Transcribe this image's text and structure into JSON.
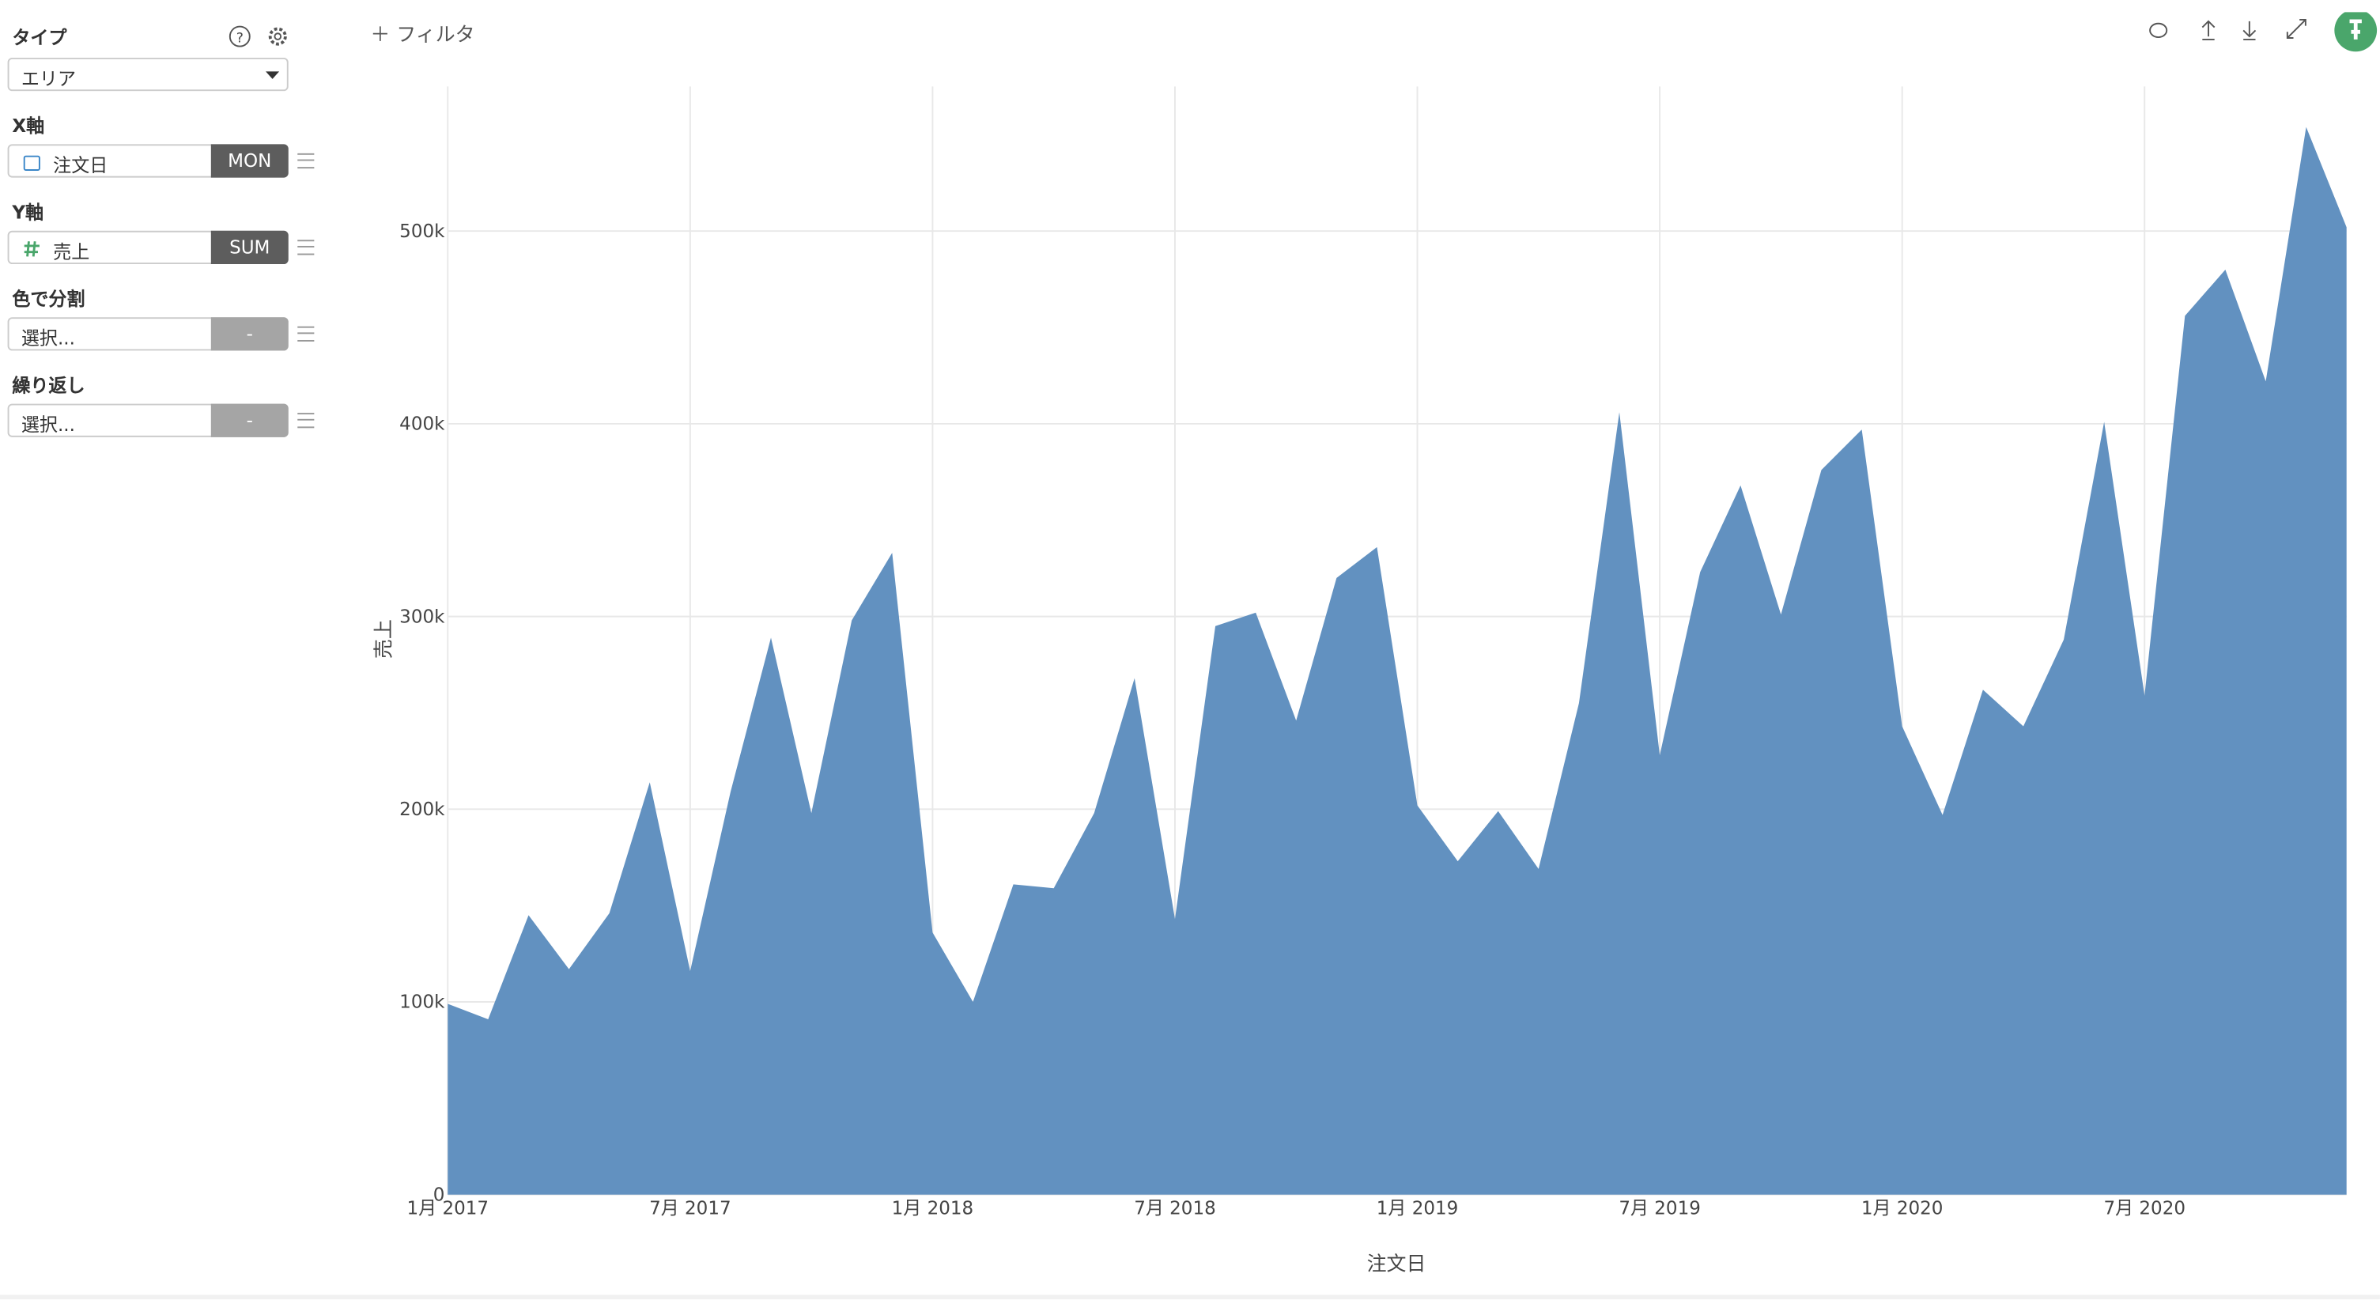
{
  "sidebar": {
    "type_label": "タイプ",
    "type_value": "エリア",
    "fields": [
      {
        "label": "X軸",
        "value": "注文日",
        "agg": "MON"
      },
      {
        "label": "Y軸",
        "value": "売上",
        "agg": "SUM"
      },
      {
        "label": "色で分割",
        "value": "選択...",
        "agg": "-"
      },
      {
        "label": "繰り返し",
        "value": "選択...",
        "agg": "-"
      }
    ]
  },
  "toolbar": {
    "filter": "フィルタ"
  },
  "chart_data": {
    "type": "area",
    "x_label": "注文日",
    "y_label": "売上",
    "color": "#6291c0",
    "grid": true,
    "x": [
      "2017-01",
      "2017-02",
      "2017-03",
      "2017-04",
      "2017-05",
      "2017-06",
      "2017-07",
      "2017-08",
      "2017-09",
      "2017-10",
      "2017-11",
      "2017-12",
      "2018-01",
      "2018-02",
      "2018-03",
      "2018-04",
      "2018-05",
      "2018-06",
      "2018-07",
      "2018-08",
      "2018-09",
      "2018-10",
      "2018-11",
      "2018-12",
      "2019-01",
      "2019-02",
      "2019-03",
      "2019-04",
      "2019-05",
      "2019-06",
      "2019-07",
      "2019-08",
      "2019-09",
      "2019-10",
      "2019-11",
      "2019-12",
      "2020-01",
      "2020-02",
      "2020-03",
      "2020-04",
      "2020-05",
      "2020-06",
      "2020-07",
      "2020-08",
      "2020-09",
      "2020-10",
      "2020-11",
      "2020-12"
    ],
    "values": [
      99000,
      91000,
      145000,
      117000,
      146000,
      214000,
      116000,
      209000,
      289000,
      198000,
      298000,
      333000,
      136000,
      100000,
      161000,
      159000,
      198000,
      268000,
      143000,
      295000,
      302000,
      246000,
      320000,
      336000,
      202000,
      173000,
      199000,
      169000,
      255000,
      406000,
      228000,
      323000,
      368000,
      301000,
      376000,
      397000,
      243000,
      197000,
      262000,
      243000,
      288000,
      401000,
      259000,
      456000,
      480000,
      422000,
      554000,
      502000
    ],
    "xlim": [
      "2017-01",
      "2020-12"
    ],
    "xticks": [
      {
        "value": "2017-01",
        "label": "1月 2017"
      },
      {
        "value": "2017-07",
        "label": "7月 2017"
      },
      {
        "value": "2018-01",
        "label": "1月 2018"
      },
      {
        "value": "2018-07",
        "label": "7月 2018"
      },
      {
        "value": "2019-01",
        "label": "1月 2019"
      },
      {
        "value": "2019-07",
        "label": "7月 2019"
      },
      {
        "value": "2020-01",
        "label": "1月 2020"
      },
      {
        "value": "2020-07",
        "label": "7月 2020"
      }
    ],
    "ylim": [
      0,
      575000
    ],
    "yticks": [
      0,
      {
        "value": 100000,
        "label": "100k"
      },
      {
        "value": 200000,
        "label": "200k"
      },
      {
        "value": 300000,
        "label": "300k"
      },
      {
        "value": 400000,
        "label": "400k"
      },
      {
        "value": 500000,
        "label": "500k"
      }
    ]
  }
}
